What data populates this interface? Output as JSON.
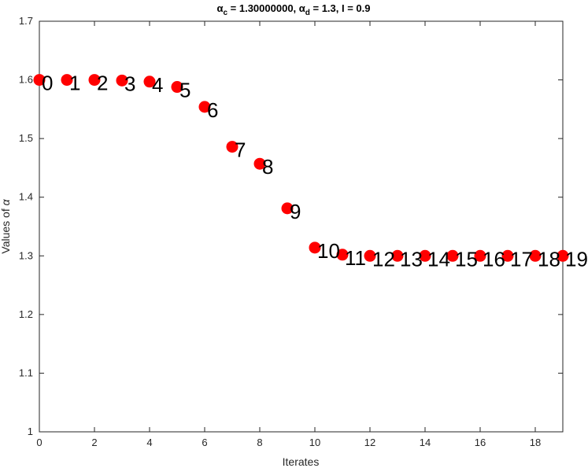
{
  "chart_data": {
    "type": "scatter",
    "title": {
      "alpha_symbol": "α",
      "c_sub": "c",
      "c_value": " = 1.30000000,  ",
      "d_sub": "d",
      "d_value": " = 1.3,  I = 0.9"
    },
    "xlabel": "Iterates",
    "ylabel_prefix": "Values of ",
    "ylabel_symbol": "α",
    "xlim": [
      0,
      19
    ],
    "ylim": [
      1,
      1.7
    ],
    "xticks": [
      0,
      2,
      4,
      6,
      8,
      10,
      12,
      14,
      16,
      18
    ],
    "yticks": [
      1,
      1.1,
      1.2,
      1.3,
      1.4,
      1.5,
      1.6,
      1.7
    ],
    "grid": false,
    "marker_color": "#ff0000",
    "x": [
      0,
      1,
      2,
      3,
      4,
      5,
      6,
      7,
      8,
      9,
      10,
      11,
      12,
      13,
      14,
      15,
      16,
      17,
      18,
      19
    ],
    "y": [
      1.6,
      1.6,
      1.6,
      1.599,
      1.597,
      1.588,
      1.554,
      1.486,
      1.457,
      1.381,
      1.314,
      1.302,
      1.3,
      1.3,
      1.3,
      1.3,
      1.3,
      1.3,
      1.3,
      1.3
    ],
    "point_labels": [
      "0",
      "1",
      "2",
      "3",
      "4",
      "5",
      "6",
      "7",
      "8",
      "9",
      "10",
      "11",
      "12",
      "13",
      "14",
      "15",
      "16",
      "17",
      "18",
      "19"
    ]
  }
}
